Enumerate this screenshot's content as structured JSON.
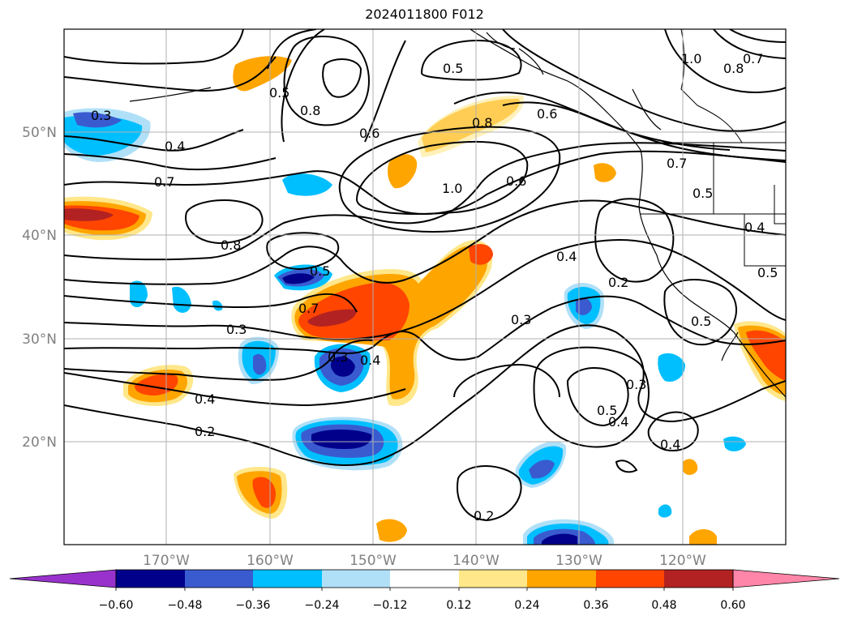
{
  "title": "2024011800 F012",
  "map": {
    "lon_range": [
      -180,
      -110
    ],
    "lat_range": [
      10,
      60
    ],
    "lon_ticks": [
      {
        "value": -170,
        "label": "170°W"
      },
      {
        "value": -160,
        "label": "160°W"
      },
      {
        "value": -150,
        "label": "150°W"
      },
      {
        "value": -140,
        "label": "140°W"
      },
      {
        "value": -130,
        "label": "130°W"
      },
      {
        "value": -120,
        "label": "120°W"
      }
    ],
    "lat_ticks": [
      {
        "value": 20,
        "label": "20°N"
      },
      {
        "value": 30,
        "label": "30°N"
      },
      {
        "value": 40,
        "label": "40°N"
      },
      {
        "value": 50,
        "label": "50°N"
      }
    ],
    "grid": true,
    "contour_labels": [
      "0.3",
      "0.4",
      "0.7",
      "0.8",
      "0.5",
      "0.3",
      "0.4",
      "0.2",
      "0.7",
      "0.8",
      "0.5",
      "0.6",
      "0.5",
      "0.6",
      "0.8",
      "1.0",
      "0.6",
      "0.7",
      "0.5",
      "1.0",
      "0.8",
      "0.7",
      "0.4",
      "0.2",
      "0.3",
      "0.5",
      "0.3",
      "0.5",
      "0.4",
      "0.4",
      "0.2",
      "0.4",
      "0.5",
      "0.3",
      "0.4"
    ]
  },
  "colorbar": {
    "extend": "both",
    "colors": [
      "#9932cc",
      "#00008b",
      "#3a5bd0",
      "#00bfff",
      "#b0e0f8",
      "#ffffff",
      "#ffe78a",
      "#ffa500",
      "#ff4500",
      "#b22222",
      "#ff86a8"
    ],
    "tick_labels": [
      "−0.60",
      "−0.48",
      "−0.36",
      "−0.24",
      "−0.12",
      "0.12",
      "0.24",
      "0.36",
      "0.48",
      "0.60"
    ]
  },
  "legend": {
    "positive_anomaly": "warm-color-fill",
    "negative_anomaly": "cool-color-fill",
    "contours": "black-lines"
  }
}
